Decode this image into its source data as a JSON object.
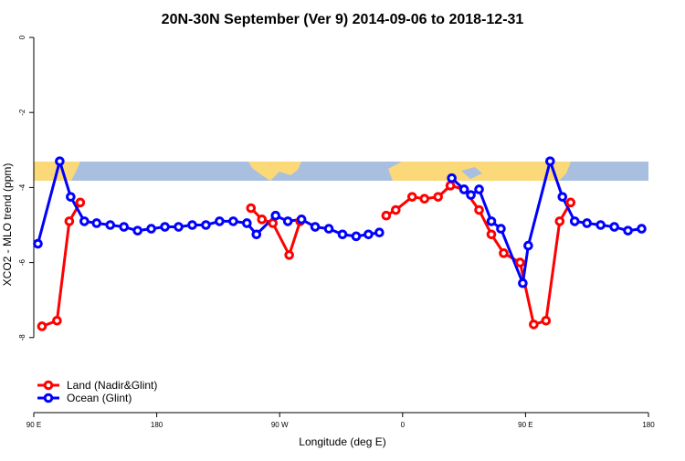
{
  "chart_data": {
    "type": "line",
    "title": "20N-30N September (Ver 9)   2014-09-06 to 2018-12-31",
    "x_label": "Longitude (deg E)",
    "y_label": "XCO2 - MLO trend (ppm)",
    "xlim": [
      90,
      540
    ],
    "xticks": [
      {
        "value": 90,
        "label": "90 E"
      },
      180,
      {
        "value": 270,
        "label": "90 W"
      },
      {
        "value": 360,
        "label": "0"
      },
      {
        "value": 450,
        "label": "90 E"
      },
      {
        "value": 540,
        "label": "180"
      }
    ],
    "ylim": [
      -10,
      0
    ],
    "yticks": [
      0,
      -2,
      -4,
      -6,
      -8
    ],
    "legend": "bottom-left",
    "series": [
      {
        "name": "Land (Nadir&Glint)",
        "color": "#ff0000",
        "x": [
          96,
          107,
          116,
          124,
          null,
          249,
          257,
          265,
          277,
          285,
          null,
          348,
          355,
          367,
          376,
          386,
          395,
          405,
          416,
          425,
          434,
          446,
          456,
          465,
          475,
          483
        ],
        "values": [
          -7.7,
          -7.55,
          -4.9,
          -4.4,
          null,
          -4.55,
          -4.85,
          -4.95,
          -5.8,
          -4.9,
          null,
          -4.75,
          -4.6,
          -4.25,
          -4.3,
          -4.25,
          -3.95,
          -4.05,
          -4.6,
          -5.25,
          -5.75,
          -6.0,
          -7.65,
          -7.55,
          -4.9,
          -4.4
        ]
      },
      {
        "name": "Ocean (Glint)",
        "color": "#0000ff",
        "x": [
          93,
          109,
          117,
          127,
          136,
          146,
          156,
          166,
          176,
          186,
          196,
          206,
          216,
          226,
          236,
          246,
          253,
          267,
          276,
          286,
          296,
          306,
          316,
          326,
          335,
          343,
          null,
          396,
          405,
          410,
          416,
          425,
          432,
          448,
          452,
          468,
          477,
          486,
          495,
          505,
          515,
          525,
          535
        ],
        "values": [
          -5.5,
          -3.3,
          -4.25,
          -4.9,
          -4.95,
          -5.0,
          -5.05,
          -5.15,
          -5.1,
          -5.05,
          -5.05,
          -5.0,
          -5.0,
          -4.9,
          -4.9,
          -4.95,
          -5.25,
          -4.75,
          -4.9,
          -4.85,
          -5.05,
          -5.1,
          -5.25,
          -5.3,
          -5.25,
          -5.2,
          null,
          -3.75,
          -4.05,
          -4.2,
          -4.05,
          -4.9,
          -5.1,
          -6.55,
          -5.55,
          -3.3,
          -4.25,
          -4.9,
          -4.95,
          -5.0,
          -5.05,
          -5.15,
          -5.1
        ]
      }
    ]
  }
}
